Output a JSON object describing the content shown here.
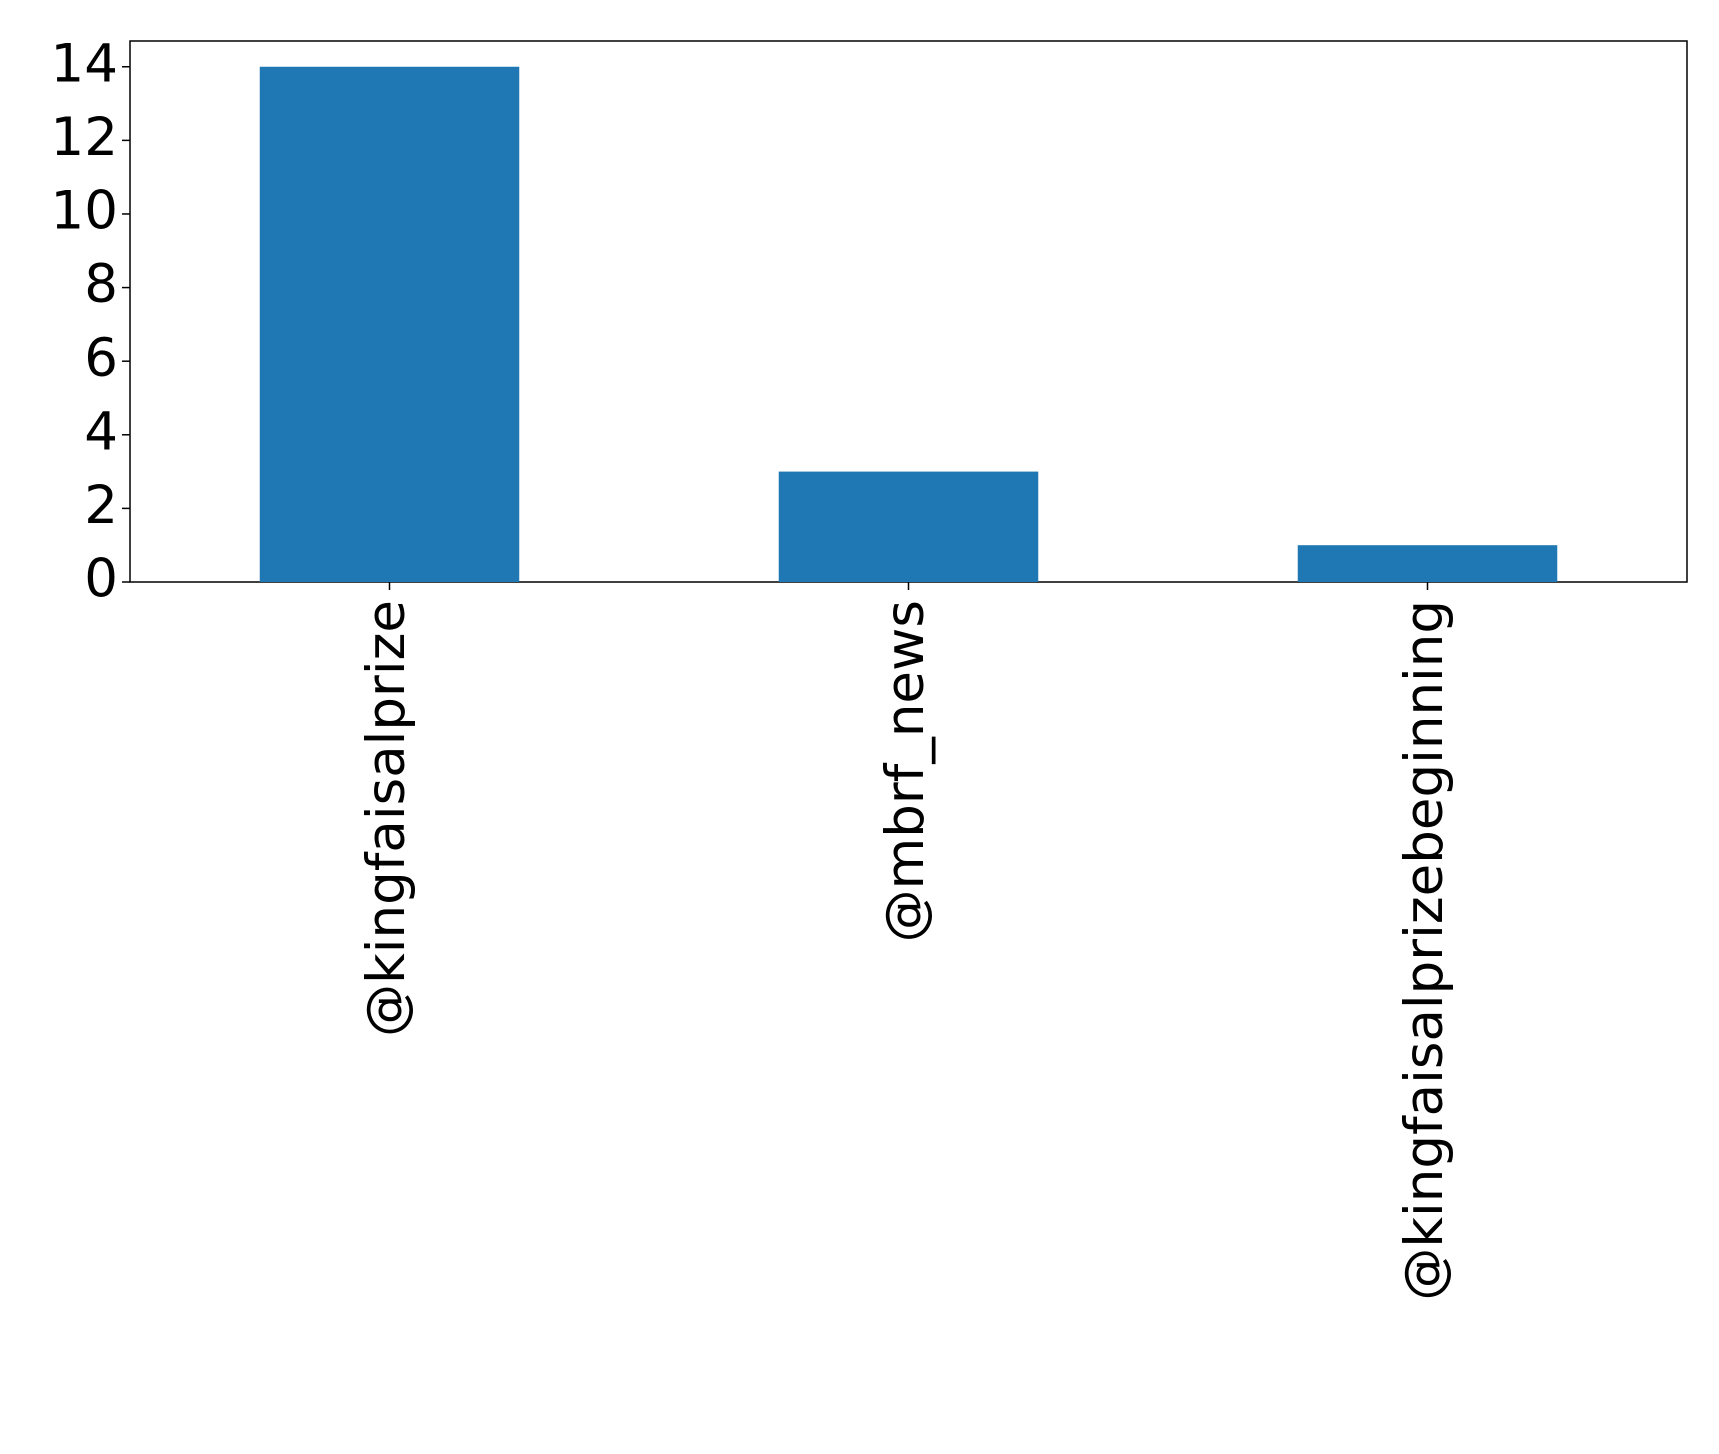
{
  "chart_data": {
    "type": "bar",
    "categories": [
      "@kingfaisalprize",
      "@mbrf_news",
      "@kingfaisalprizebeginning"
    ],
    "values": [
      14,
      3,
      1
    ],
    "color": "#1f77b4",
    "ylim": [
      0,
      14.7
    ],
    "yticks": [
      0,
      2,
      4,
      6,
      8,
      10,
      12,
      14
    ],
    "grid": false
  }
}
